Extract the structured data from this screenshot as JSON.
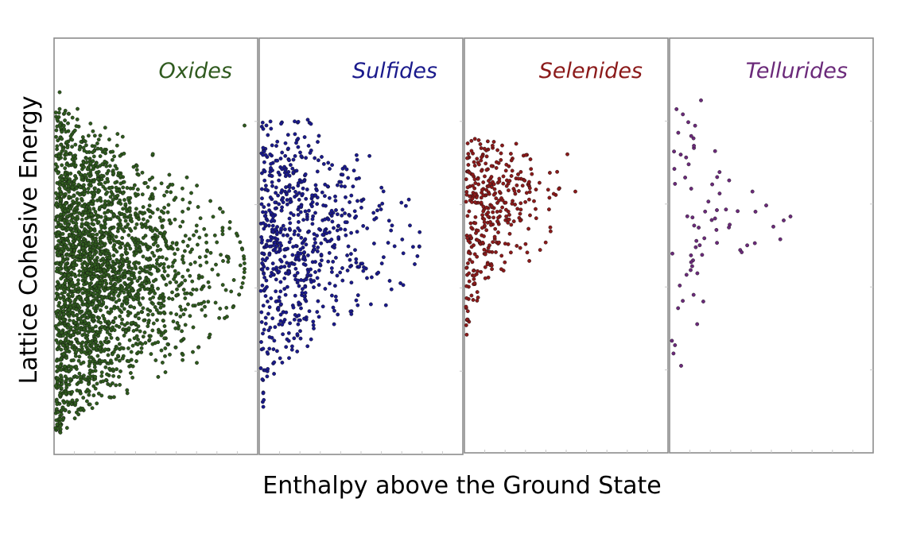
{
  "chart_data": {
    "type": "scatter",
    "xlabel": "Enthalpy above the Ground State",
    "ylabel": "Lattice Cohesive Energy",
    "x_tick_labels_shown": false,
    "y_tick_labels_shown": false,
    "grid": false,
    "xlim": [
      0,
      1
    ],
    "ylim": [
      0,
      1
    ],
    "panels": [
      {
        "title": "Oxides",
        "color": "#2f5a1e",
        "points_estimated": 2500,
        "envelope": {
          "x_max": 0.95,
          "y_min": 0.05,
          "y_max": 0.83,
          "y_center": 0.45
        },
        "outliers": [
          [
            0.11,
            0.83
          ],
          [
            0.95,
            0.79
          ],
          [
            0.02,
            0.87
          ],
          [
            0.71,
            0.22
          ]
        ]
      },
      {
        "title": "Sulfides",
        "color": "#1a1a8c",
        "points_estimated": 700,
        "envelope": {
          "x_max": 0.8,
          "y_min": 0.11,
          "y_max": 0.81,
          "y_center": 0.52
        },
        "outliers": [
          [
            0.17,
            0.8
          ],
          [
            0.75,
            0.55
          ],
          [
            0.66,
            0.55
          ],
          [
            0.48,
            0.37
          ]
        ]
      },
      {
        "title": "Selenides",
        "color": "#8b1a1a",
        "points_estimated": 350,
        "envelope": {
          "x_max": 0.55,
          "y_min": 0.26,
          "y_max": 0.76,
          "y_center": 0.6
        },
        "outliers": [
          [
            0.51,
            0.72
          ],
          [
            0.55,
            0.63
          ],
          [
            0.14,
            0.75
          ]
        ]
      },
      {
        "title": "Tellurides",
        "color": "#6b2a7a",
        "points_estimated": 70,
        "envelope": {
          "x_max": 0.62,
          "y_min": 0.21,
          "y_max": 0.85,
          "y_center": 0.55
        },
        "outliers": [
          [
            0.6,
            0.57
          ],
          [
            0.15,
            0.85
          ],
          [
            0.05,
            0.21
          ]
        ]
      }
    ]
  }
}
